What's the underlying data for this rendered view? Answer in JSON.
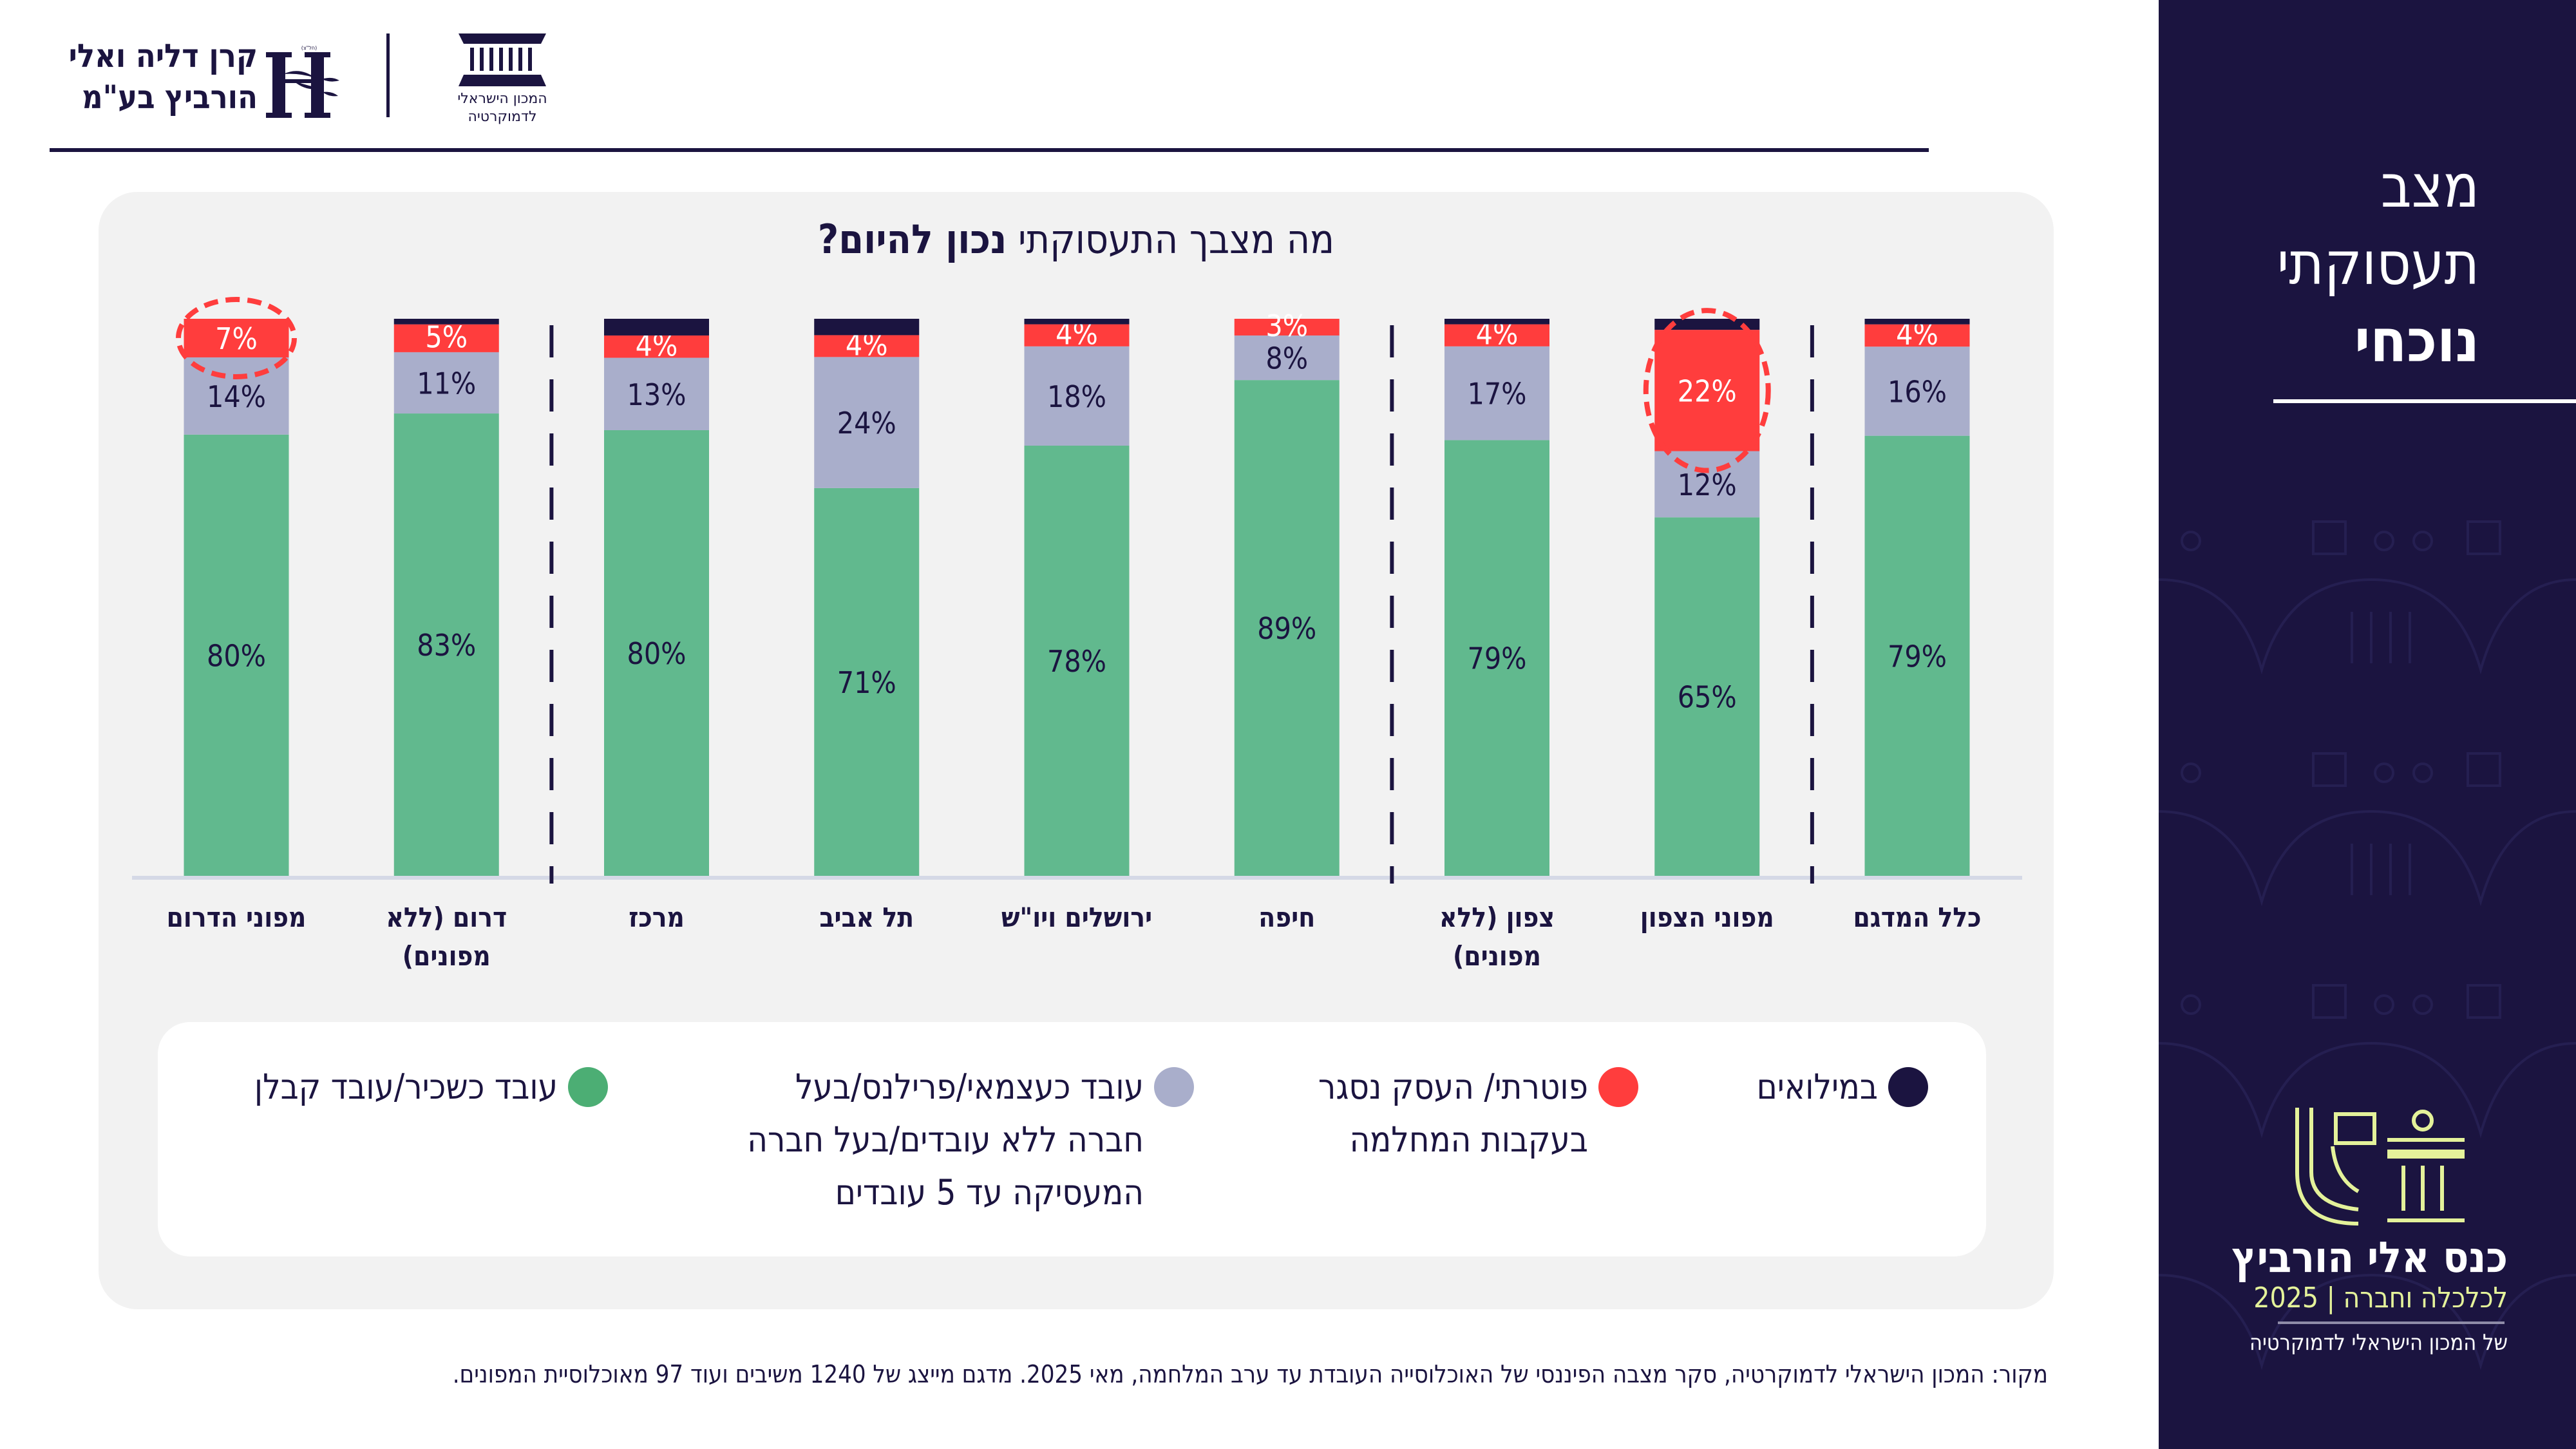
{
  "header": {
    "horowitz_logo": {
      "line1": "קרן דליה ואלי",
      "line2": "הורביץ בע\"מ",
      "tagline": "(חל\"צ)"
    },
    "idi_logo": {
      "line1": "המכון הישראלי",
      "line2": "לדמוקרטיה"
    }
  },
  "sidebar": {
    "title_line1": "מצב",
    "title_line2": "תעסוקתי",
    "title_line3": "נוכחי",
    "conference": {
      "name": "כנס אלי הורביץ",
      "subtitle": "לכלכלה וחברה | 2025",
      "organizer": "של המכון הישראלי לדמוקרטיה"
    }
  },
  "colors": {
    "navy": "#1b1440",
    "red": "#ff3d3d",
    "lavender": "#a9aecb",
    "green": "#61b98e",
    "panel": "#f2f2f2",
    "accent_lime": "#e4f29a"
  },
  "chart_data": {
    "type": "bar",
    "stacked": true,
    "orientation": "vertical",
    "title": "מה מצבך התעסוקתי נכון להיום?",
    "title_regular": "מה מצבך התעסוקתי ",
    "title_bold": "נכון להיום?",
    "xlabel": "",
    "ylabel": "",
    "ylim": [
      0,
      100
    ],
    "unit": "%",
    "grid": false,
    "legend_position": "bottom",
    "categories": [
      "כלל המדגם",
      "מפוני הצפון",
      "צפון (ללא מפונים)",
      "חיפה",
      "ירושלים ויו\"ש",
      "תל אביב",
      "מרכז",
      "דרום (ללא מפונים)",
      "מפוני הדרום"
    ],
    "category_lines": [
      [
        "כלל המדגם"
      ],
      [
        "מפוני הצפון"
      ],
      [
        "צפון (ללא",
        "מפונים)"
      ],
      [
        "חיפה"
      ],
      [
        "ירושלים ויו\"ש"
      ],
      [
        "תל אביב"
      ],
      [
        "מרכז"
      ],
      [
        "דרום (ללא",
        "מפונים)"
      ],
      [
        "מפוני הדרום"
      ]
    ],
    "group_dividers_after": [
      0,
      2,
      6
    ],
    "highlighted": [
      {
        "category": "מפוני הצפון",
        "series": "פוטרתי/ העסק נסגר בעקבות המחלמה"
      },
      {
        "category": "מפוני הדרום",
        "series": "פוטרתי/ העסק נסגר בעקבות המחלמה"
      }
    ],
    "series": [
      {
        "name": "עובד כשכיר/עובד קבלן",
        "color": "#61b98e",
        "label_color": "#1b1440",
        "values": [
          79,
          65,
          79,
          89,
          78,
          71,
          80,
          83,
          80
        ],
        "labels": [
          "79%",
          "65%",
          "79%",
          "89%",
          "78%",
          "71%",
          "80%",
          "83%",
          "80%"
        ]
      },
      {
        "name": "עובד כעצמאי/פרילנס/בעל חברה ללא עובדים/בעל חברה המעסיקה עד 5 עובדים",
        "color": "#a9aecb",
        "label_color": "#1b1440",
        "values": [
          16,
          12,
          17,
          8,
          18,
          24,
          13,
          11,
          14
        ],
        "labels": [
          "16%",
          "12%",
          "17%",
          "8%",
          "18%",
          "24%",
          "13%",
          "11%",
          "14%"
        ]
      },
      {
        "name": "פוטרתי/ העסק נסגר בעקבות המחלמה",
        "color": "#ff3d3d",
        "label_color": "#ffffff",
        "values": [
          4,
          22,
          4,
          3,
          4,
          4,
          4,
          5,
          7
        ],
        "labels": [
          "4%",
          "22%",
          "4%",
          "3%",
          "4%",
          "4%",
          "4%",
          "5%",
          "7%"
        ]
      },
      {
        "name": "במילואים",
        "color": "#1b1440",
        "label_color": "#ffffff",
        "values": [
          1,
          2,
          1,
          0,
          1,
          3,
          3,
          1,
          0
        ],
        "labels": [
          "",
          "",
          "",
          "",
          "",
          "",
          "",
          "",
          ""
        ]
      }
    ]
  },
  "legend": [
    {
      "key": "reserve",
      "label": "במילואים",
      "color": "#1b1440"
    },
    {
      "key": "fired",
      "label": "פוטרתי/ העסק נסגר בעקבות המחלמה",
      "line1": "פוטרתי/ העסק נסגר",
      "line2": "בעקבות המחלמה",
      "color": "#ff3d3d"
    },
    {
      "key": "self",
      "label": "עובד כעצמאי/פרילנס/בעל חברה ללא עובדים/בעל חברה המעסיקה עד 5 עובדים",
      "line1": "עובד כעצמאי/פרילנס/בעל",
      "line2": "חברה ללא עובדים/בעל חברה",
      "line3": "המעסיקה עד 5 עובדים",
      "color": "#a9aecb"
    },
    {
      "key": "employee",
      "label": "עובד כשכיר/עובד קבלן",
      "color": "#4cae74"
    }
  ],
  "source": "מקור: המכון הישראלי לדמוקרטיה, סקר מצבה הפיננסי של האוכלוסייה העובדת עד ערב המלחמה, מאי 2025. מדגם מייצג של 1240 משיבים ועוד 97 מאוכלוסיית המפונים."
}
